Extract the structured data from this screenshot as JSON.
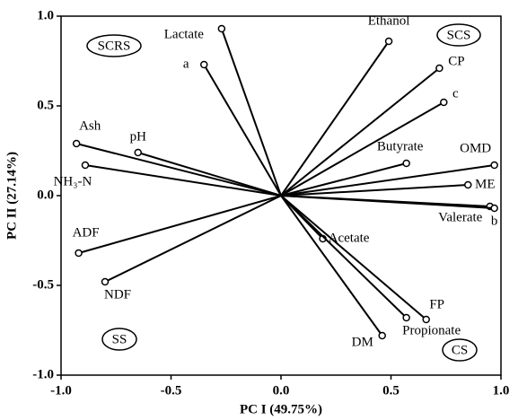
{
  "chart_data": {
    "type": "biplot",
    "x_label": "PC I (49.75%)",
    "y_label": "PC II (27.14%)",
    "labels": [
      "Lactate",
      "a",
      "Ethanol",
      "CP",
      "c",
      "Butyrate",
      "OMD",
      "ME",
      "Valerate",
      "b",
      "Acetate",
      "FP",
      "Propionate",
      "DM",
      "Ash",
      "pH",
      "NH₃-N",
      "ADF",
      "NDF"
    ],
    "x": [
      -0.27,
      -0.35,
      0.49,
      0.72,
      0.74,
      0.57,
      0.97,
      0.85,
      0.95,
      0.97,
      0.19,
      0.66,
      0.57,
      0.46,
      -0.93,
      -0.65,
      -0.89,
      -0.92,
      -0.8
    ],
    "values": [
      0.93,
      0.73,
      0.86,
      0.71,
      0.52,
      0.18,
      0.17,
      0.06,
      -0.06,
      -0.07,
      -0.24,
      -0.69,
      -0.68,
      -0.78,
      0.29,
      0.24,
      0.17,
      -0.32,
      -0.48
    ],
    "color": "#000000",
    "xlim": [
      -1,
      1
    ],
    "ylim": [
      -1,
      1
    ],
    "xticks": [
      {
        "value": -1,
        "label": "-1.0"
      },
      {
        "value": -0.5,
        "label": "-0.5"
      },
      {
        "value": 0,
        "label": "0.0"
      },
      {
        "value": 0.5,
        "label": "0.5"
      },
      {
        "value": 1,
        "label": "1.0"
      }
    ],
    "yticks": [
      {
        "value": -1,
        "label": "-1.0"
      },
      {
        "value": -0.5,
        "label": "-0.5"
      },
      {
        "value": 0,
        "label": "0.0"
      },
      {
        "value": 0.5,
        "label": "0.5"
      },
      {
        "value": 1,
        "label": "1.0"
      }
    ],
    "annotations": [
      "SCRS",
      "SCS",
      "SS",
      "CS"
    ]
  }
}
